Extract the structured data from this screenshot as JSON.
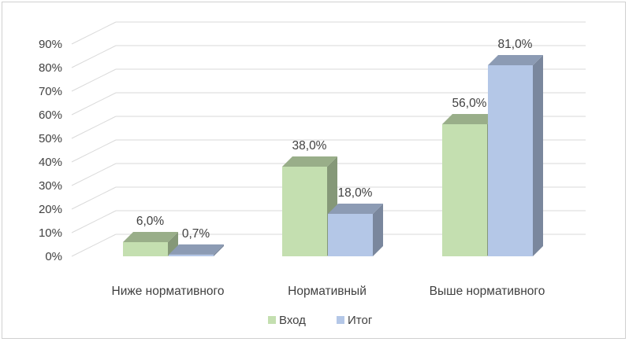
{
  "chart_data": {
    "type": "bar",
    "categories": [
      "Ниже нормативного",
      "Нормативный",
      "Выше нормативного"
    ],
    "series": [
      {
        "name": "Вход",
        "values": [
          6.0,
          38.0,
          56.0
        ],
        "labels": [
          "6,0%",
          "38,0%",
          "56,0%"
        ],
        "color": "#c4dfb0"
      },
      {
        "name": "Итог",
        "values": [
          0.7,
          18.0,
          81.0
        ],
        "labels": [
          "0,7%",
          "18,0%",
          "81,0%"
        ],
        "color": "#b4c7e7"
      }
    ],
    "y_ticks": [
      "0%",
      "10%",
      "20%",
      "30%",
      "40%",
      "50%",
      "60%",
      "70%",
      "80%",
      "90%"
    ],
    "ylim": [
      0,
      90
    ],
    "grid": true,
    "legend_position": "bottom",
    "title": "",
    "xlabel": "",
    "ylabel": ""
  }
}
